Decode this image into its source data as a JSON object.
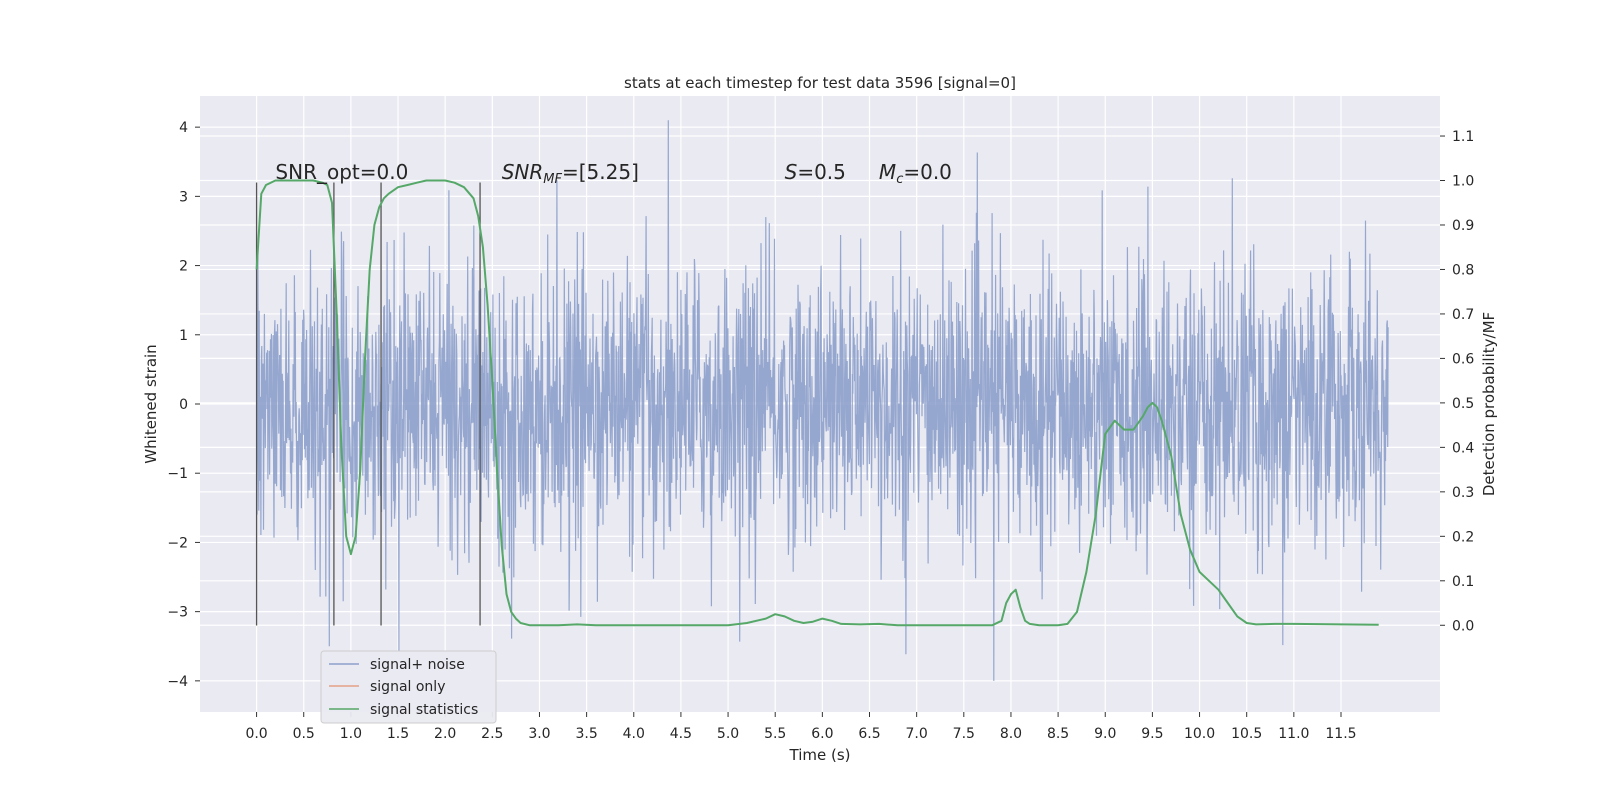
{
  "chart_data": {
    "type": "line",
    "title": "stats at each timestep for test data 3596 [signal=0]",
    "xlabel": "Time (s)",
    "ylabel_left": "Whitened strain",
    "ylabel_right": "Detection probability/MF",
    "xlim": [
      -0.6,
      12.55
    ],
    "ylim_left": [
      -4.45,
      4.45
    ],
    "ylim_right": [
      -0.195,
      1.19
    ],
    "grid": true,
    "legend_position": "lower-left",
    "x_ticks": [
      "0.0",
      "0.5",
      "1.0",
      "1.5",
      "2.0",
      "2.5",
      "3.0",
      "3.5",
      "4.0",
      "4.5",
      "5.0",
      "5.5",
      "6.0",
      "6.5",
      "7.0",
      "7.5",
      "8.0",
      "8.5",
      "9.0",
      "9.5",
      "10.0",
      "10.5",
      "11.0",
      "11.5"
    ],
    "y_ticks_left": [
      "−4",
      "−3",
      "−2",
      "−1",
      "0",
      "1",
      "2",
      "3",
      "4"
    ],
    "y_ticks_right": [
      "0.0",
      "0.1",
      "0.2",
      "0.3",
      "0.4",
      "0.5",
      "0.6",
      "0.7",
      "0.8",
      "0.9",
      "1.0",
      "1.1"
    ],
    "annotations": [
      {
        "label": "SNR_opt=0.0",
        "x": 0.2,
        "y": 3.25
      },
      {
        "label": "SNR_MF=[5.25]",
        "x": 2.6,
        "y": 3.25
      },
      {
        "label": "S=0.5",
        "x": 5.6,
        "y": 3.25
      },
      {
        "label": "M_c=0.0",
        "x": 6.6,
        "y": 3.25
      }
    ],
    "vertical_lines": {
      "x": [
        0.0,
        0.82,
        1.32,
        2.37
      ],
      "ymin": -3.2,
      "ymax": 3.2
    },
    "series": [
      {
        "name": "signal+ noise",
        "color": "#8da0cb",
        "kind": "noise",
        "x_range": [
          0.0,
          12.0
        ],
        "core_range": [
          -1.3,
          1.3
        ],
        "typical_peak": 2.4,
        "max_peak": 4.1,
        "min_trough": -4.0
      },
      {
        "name": "signal only",
        "color": "#e5a088",
        "kind": "line",
        "x": [],
        "y": []
      },
      {
        "name": "signal statistics",
        "color": "#55a868",
        "kind": "line",
        "axis": "right",
        "x": [
          0.0,
          0.05,
          0.1,
          0.2,
          0.3,
          0.4,
          0.5,
          0.6,
          0.7,
          0.75,
          0.8,
          0.85,
          0.9,
          0.95,
          1.0,
          1.05,
          1.1,
          1.15,
          1.2,
          1.25,
          1.3,
          1.35,
          1.4,
          1.5,
          1.6,
          1.7,
          1.8,
          1.9,
          2.0,
          2.1,
          2.2,
          2.3,
          2.35,
          2.4,
          2.45,
          2.5,
          2.55,
          2.6,
          2.65,
          2.7,
          2.75,
          2.8,
          2.9,
          3.0,
          3.2,
          3.4,
          3.6,
          3.8,
          4.0,
          4.5,
          5.0,
          5.2,
          5.4,
          5.5,
          5.6,
          5.7,
          5.8,
          5.9,
          6.0,
          6.1,
          6.2,
          6.4,
          6.6,
          6.8,
          7.0,
          7.5,
          7.8,
          7.9,
          7.95,
          8.0,
          8.05,
          8.1,
          8.15,
          8.2,
          8.3,
          8.5,
          8.6,
          8.7,
          8.8,
          8.9,
          9.0,
          9.1,
          9.2,
          9.3,
          9.4,
          9.45,
          9.5,
          9.55,
          9.6,
          9.7,
          9.8,
          9.9,
          10.0,
          10.1,
          10.2,
          10.3,
          10.4,
          10.5,
          10.6,
          10.8,
          11.0,
          11.5,
          11.9
        ],
        "y": [
          0.8,
          0.97,
          0.99,
          1.0,
          1.0,
          1.0,
          1.0,
          1.0,
          0.995,
          0.99,
          0.95,
          0.7,
          0.4,
          0.2,
          0.16,
          0.2,
          0.35,
          0.6,
          0.8,
          0.9,
          0.94,
          0.96,
          0.97,
          0.985,
          0.99,
          0.995,
          1.0,
          1.0,
          1.0,
          0.995,
          0.985,
          0.96,
          0.92,
          0.85,
          0.72,
          0.55,
          0.35,
          0.18,
          0.07,
          0.03,
          0.015,
          0.005,
          0.0,
          0.0,
          0.0,
          0.002,
          0.0,
          0.0,
          0.0,
          0.0,
          0.0,
          0.005,
          0.015,
          0.025,
          0.02,
          0.01,
          0.005,
          0.008,
          0.015,
          0.01,
          0.003,
          0.002,
          0.003,
          0.0,
          0.0,
          0.0,
          0.0,
          0.01,
          0.05,
          0.07,
          0.08,
          0.04,
          0.01,
          0.003,
          0.0,
          0.0,
          0.003,
          0.03,
          0.12,
          0.25,
          0.43,
          0.46,
          0.44,
          0.44,
          0.47,
          0.49,
          0.5,
          0.49,
          0.46,
          0.38,
          0.25,
          0.17,
          0.12,
          0.1,
          0.08,
          0.05,
          0.02,
          0.005,
          0.002,
          0.003,
          0.003,
          0.002,
          0.001
        ]
      }
    ]
  }
}
